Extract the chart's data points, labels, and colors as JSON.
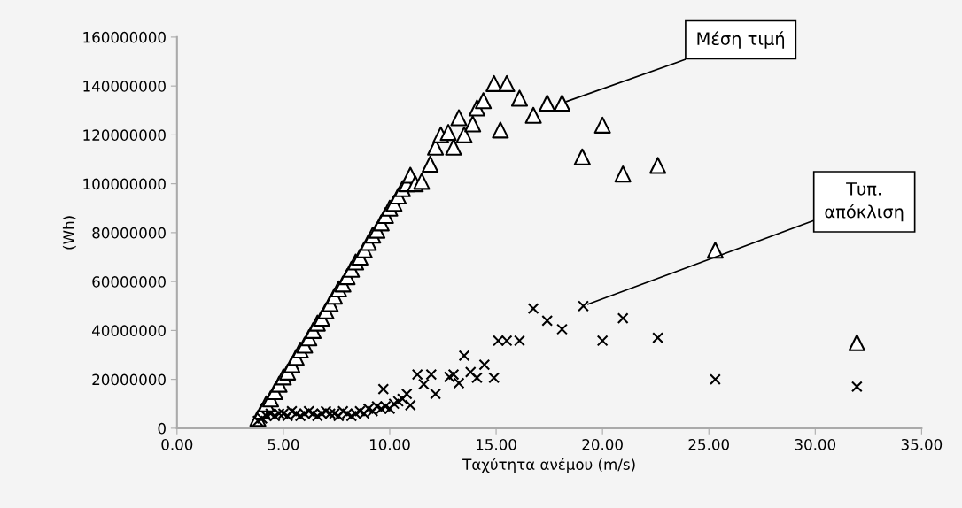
{
  "chart_data": {
    "type": "scatter",
    "xlabel": "Ταχύτητα ανέμου (m/s)",
    "ylabel": "(Wh)",
    "xlim": [
      0,
      35
    ],
    "xticks": [
      {
        "value": 0,
        "label": "0.00"
      },
      {
        "value": 5,
        "label": "5.00"
      },
      {
        "value": 10,
        "label": "10.00"
      },
      {
        "value": 15,
        "label": "15.00"
      },
      {
        "value": 20,
        "label": "20.00"
      },
      {
        "value": 25,
        "label": "25.00"
      },
      {
        "value": 30,
        "label": "30.00"
      },
      {
        "value": 35,
        "label": "35.00"
      }
    ],
    "ylim": [
      0,
      160000000
    ],
    "yticks": [
      0,
      20000000,
      40000000,
      60000000,
      80000000,
      100000000,
      120000000,
      140000000,
      160000000
    ],
    "grid": false,
    "series": [
      {
        "color": "#ffffff",
        "marker": "triangle",
        "x": [
          3.8,
          4.0,
          4.2,
          4.4,
          4.6,
          4.8,
          5.0,
          5.2,
          5.4,
          5.6,
          5.8,
          6.0,
          6.2,
          6.4,
          6.6,
          6.8,
          7.0,
          7.2,
          7.4,
          7.6,
          7.8,
          8.0,
          8.2,
          8.4,
          8.6,
          8.8,
          9.0,
          9.2,
          9.4,
          9.6,
          9.8,
          10.0,
          10.2,
          10.4,
          10.6,
          10.8,
          10.97,
          11.2,
          11.5,
          11.9,
          12.15,
          12.4,
          12.75,
          13.0,
          13.25,
          13.5,
          13.9,
          14.1,
          14.4,
          14.9,
          15.2,
          15.5,
          16.1,
          16.75,
          17.4,
          18.1,
          19.05,
          20.0,
          20.96,
          22.6,
          25.3,
          31.96
        ],
        "values": [
          4000000,
          7000000,
          10000000,
          12000000,
          15000000,
          18000000,
          21000000,
          23000000,
          26000000,
          29000000,
          32000000,
          34000000,
          37000000,
          40000000,
          43000000,
          45000000,
          48000000,
          51000000,
          54000000,
          57000000,
          59000000,
          62000000,
          65000000,
          68000000,
          70000000,
          73000000,
          76000000,
          79000000,
          81000000,
          84000000,
          87000000,
          90000000,
          92000000,
          95000000,
          98000000,
          100000000,
          103500000,
          100000000,
          101000000,
          108000000,
          115000000,
          120000000,
          121000000,
          115000000,
          127000000,
          120000000,
          124500000,
          131000000,
          134000000,
          141000000,
          122000000,
          141000000,
          135000000,
          128000000,
          133000000,
          133000000,
          111000000,
          124000000,
          104000000,
          107500000,
          72800000,
          35000000
        ]
      },
      {
        "color": "#000000",
        "marker": "cross",
        "x": [
          3.8,
          4.0,
          4.2,
          4.4,
          4.6,
          4.8,
          5.0,
          5.2,
          5.4,
          5.6,
          5.8,
          6.0,
          6.2,
          6.4,
          6.6,
          6.8,
          7.0,
          7.2,
          7.4,
          7.6,
          7.8,
          8.0,
          8.2,
          8.4,
          8.6,
          8.8,
          9.0,
          9.2,
          9.4,
          9.6,
          9.7,
          9.8,
          10.0,
          10.2,
          10.4,
          10.6,
          10.8,
          10.97,
          11.3,
          11.6,
          11.95,
          12.15,
          12.8,
          13.0,
          13.25,
          13.5,
          13.8,
          14.1,
          14.45,
          14.9,
          15.1,
          15.5,
          16.1,
          16.75,
          17.4,
          18.1,
          19.1,
          20.0,
          20.96,
          22.6,
          25.3,
          31.96
        ],
        "values": [
          3000000,
          4000000,
          5000000,
          6000000,
          5000000,
          6000000,
          6000000,
          5000000,
          7000000,
          6000000,
          5000000,
          6000000,
          7000000,
          6000000,
          5000000,
          6000000,
          7000000,
          6000000,
          6000000,
          5000000,
          7000000,
          6000000,
          5000000,
          6000000,
          7000000,
          6000000,
          8000000,
          7000000,
          9000000,
          8000000,
          16000000,
          9000000,
          8000000,
          10000000,
          11000000,
          12000000,
          14000000,
          9400000,
          22000000,
          18000000,
          22000000,
          14000000,
          21000000,
          22000000,
          18500000,
          29700000,
          23000000,
          20600000,
          26000000,
          20600000,
          35800000,
          35800000,
          35800000,
          49000000,
          44000000,
          40500000,
          50000000,
          35800000,
          45000000,
          37000000,
          20000000,
          17000000
        ]
      }
    ],
    "annotations": [
      {
        "text": "Μέση τιμή",
        "x": 18.1,
        "y": 133000000
      },
      {
        "text": "Τυπ.\nαπόκλιση",
        "x": 19.1,
        "y": 50000000
      }
    ]
  }
}
